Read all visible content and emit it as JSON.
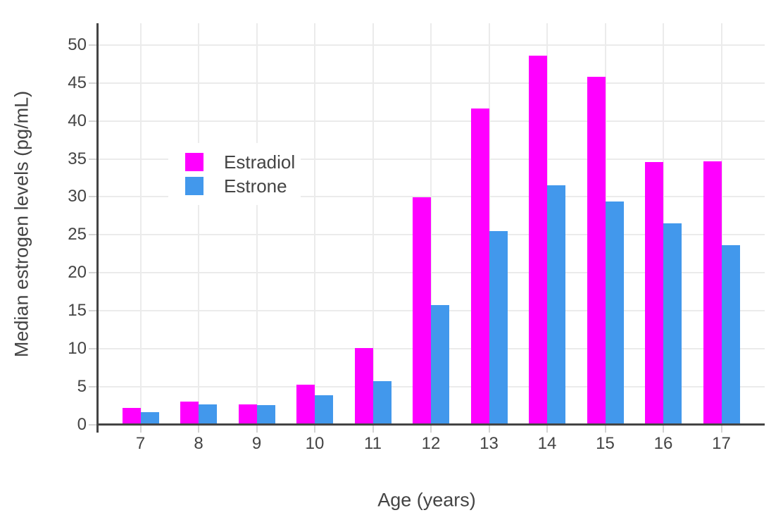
{
  "chart_data": {
    "type": "bar",
    "title": "",
    "xlabel": "Age (years)",
    "ylabel": "Median estrogen levels (pg/mL)",
    "categories": [
      "7",
      "8",
      "9",
      "10",
      "11",
      "12",
      "13",
      "14",
      "15",
      "16",
      "17"
    ],
    "series": [
      {
        "name": "Estradiol",
        "color": "#ff00ff",
        "values": [
          2.2,
          3.1,
          2.7,
          5.3,
          10.1,
          30.0,
          41.7,
          48.7,
          45.9,
          34.6,
          34.7
        ]
      },
      {
        "name": "Estrone",
        "color": "#4298ec",
        "values": [
          1.7,
          2.7,
          2.6,
          3.9,
          5.8,
          15.8,
          25.5,
          31.6,
          29.4,
          26.6,
          23.7
        ]
      }
    ],
    "ylim": [
      0,
      52.9
    ],
    "yticks": [
      0,
      5,
      10,
      15,
      20,
      25,
      30,
      35,
      40,
      45,
      50
    ],
    "grid": true,
    "legend_position": "inside-upper-left",
    "colors": {
      "background": "#ffffff",
      "grid": "#ebebeb",
      "tick": "#d4d4d4",
      "axis": "#444444",
      "text": "#444444",
      "estradiol": "#ff00ff",
      "estrone": "#4298ec"
    }
  }
}
